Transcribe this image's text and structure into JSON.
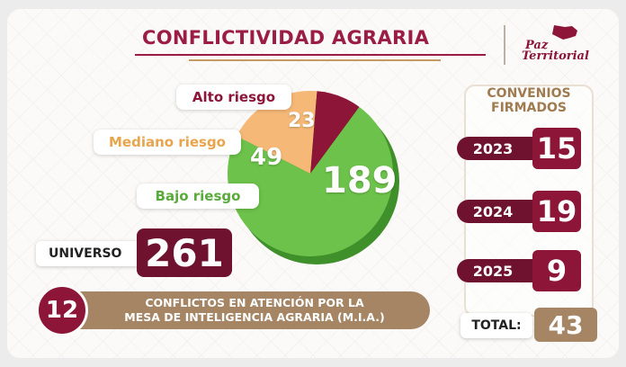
{
  "header": {
    "title": "CONFLICTIVIDAD AGRARIA",
    "logo_line1": "Paz",
    "logo_line2": "Territorial"
  },
  "chart_data": {
    "type": "pie",
    "categories": [
      "Alto riesgo",
      "Mediano riesgo",
      "Bajo riesgo"
    ],
    "values": [
      23,
      49,
      189
    ],
    "colors": [
      "#8c1538",
      "#f6b877",
      "#6cc24a"
    ]
  },
  "universo": {
    "label": "UNIVERSO",
    "value": "261"
  },
  "mia": {
    "count": "12",
    "line1": "CONFLICTOS EN ATENCIÓN POR LA",
    "line2": "MESA DE INTELIGENCIA AGRARIA (M.I.A.)"
  },
  "convenios": {
    "title_line1": "CONVENIOS",
    "title_line2": "FIRMADOS",
    "years": [
      {
        "year": "2023",
        "value": "15"
      },
      {
        "year": "2024",
        "value": "19"
      },
      {
        "year": "2025",
        "value": "9"
      }
    ],
    "total_label": "TOTAL:",
    "total_value": "43"
  },
  "colors": {
    "primary": "#8c1538",
    "dark": "#6f1230",
    "gold": "#a58563",
    "green": "#6cc24a",
    "orange": "#f6b877"
  }
}
